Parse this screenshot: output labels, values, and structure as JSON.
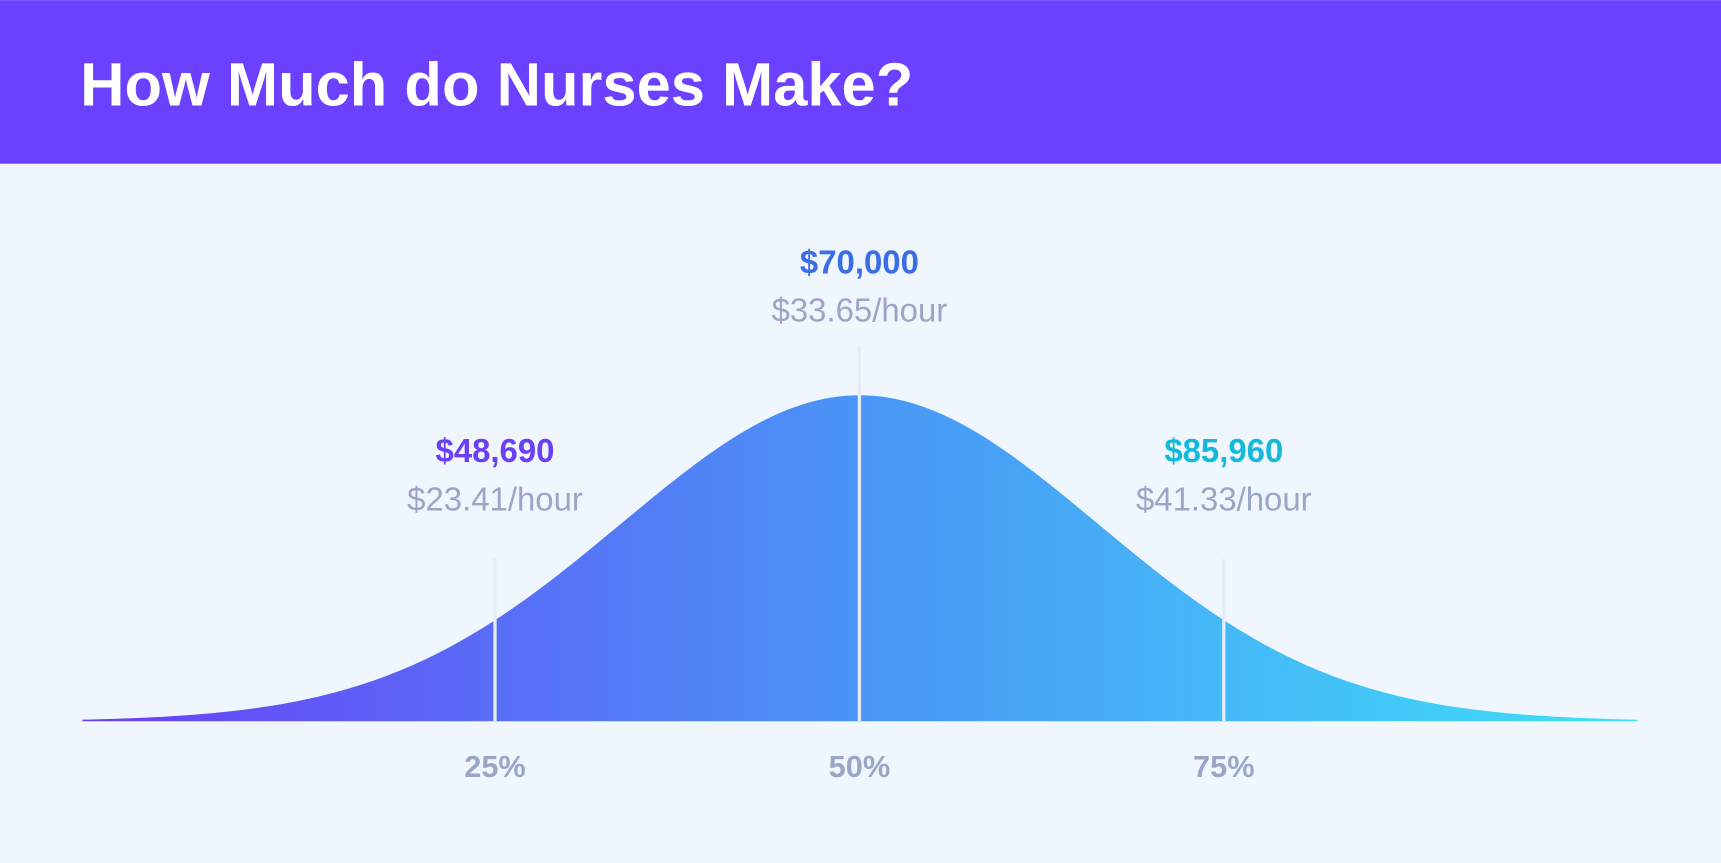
{
  "chart_data": {
    "type": "bell",
    "title": "How Much do Nurses Make?",
    "categories": [
      {
        "value": 25,
        "label": "25%"
      },
      {
        "value": 50,
        "label": "50%"
      },
      {
        "value": 75,
        "label": "75%"
      }
    ],
    "xlim": [
      0,
      100
    ],
    "values": [
      48690,
      70000,
      85960
    ],
    "value_labels": [
      "$48,690",
      "$70,000",
      "$85,960"
    ],
    "colors": [
      "#6a3ff5",
      "#3c6de9",
      "#16b9d9"
    ],
    "hourly_values": [
      23.41,
      33.65,
      41.33
    ],
    "hourly_labels": [
      "$23.41/hour",
      "$33.65/hour",
      "$41.33/hour"
    ]
  }
}
